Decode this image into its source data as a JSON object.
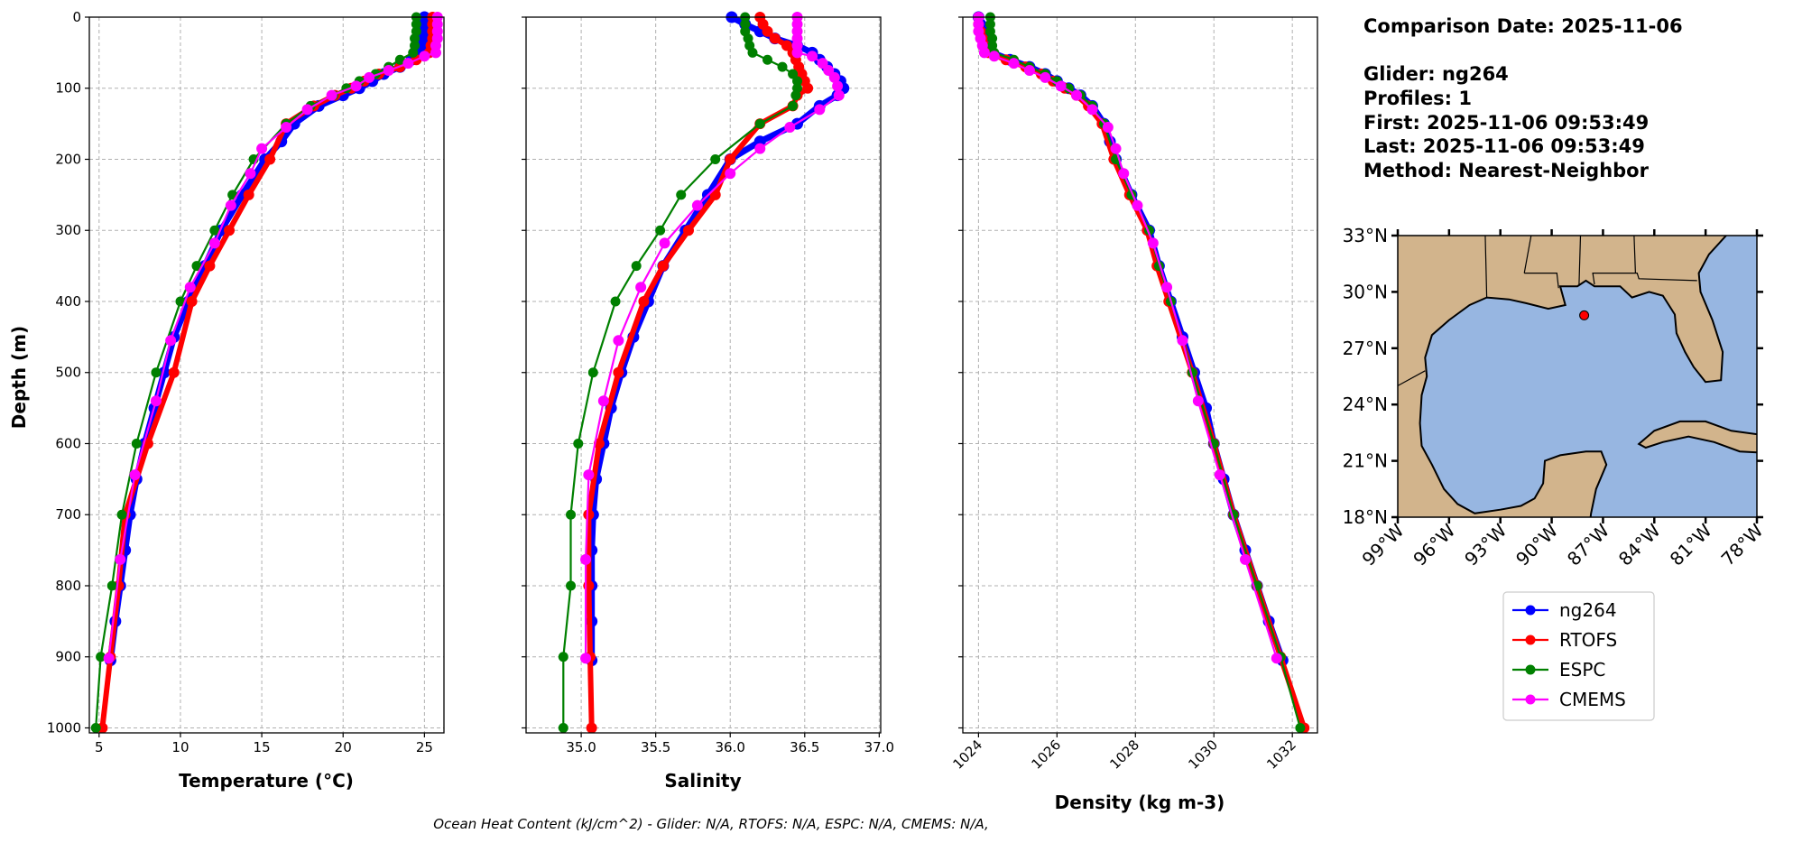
{
  "info": {
    "comparison": "Comparison Date: 2025-11-06",
    "glider": "Glider: ng264",
    "profiles": "Profiles: 1",
    "first": "First: 2025-11-06 09:53:49",
    "last": "Last: 2025-11-06 09:53:49",
    "method": "Method: Nearest-Neighbor"
  },
  "footer_note": "Ocean Heat Content (kJ/cm^2) - Glider: N/A,  RTOFS: N/A,  ESPC: N/A,  CMEMS: N/A,",
  "legend": [
    {
      "name": "ng264",
      "color": "#0000ff"
    },
    {
      "name": "RTOFS",
      "color": "#ff0000"
    },
    {
      "name": "ESPC",
      "color": "#008000"
    },
    {
      "name": "CMEMS",
      "color": "#ff00ff"
    }
  ],
  "depth_axis": {
    "label": "Depth (m)",
    "lim": [
      1007,
      0
    ],
    "ticks": [
      0,
      100,
      200,
      300,
      400,
      500,
      600,
      700,
      800,
      900,
      1000
    ]
  },
  "series_depths": {
    "ng264": [
      0,
      10,
      20,
      30,
      40,
      50,
      60,
      70,
      80,
      90,
      100,
      110,
      125,
      150,
      175,
      200,
      250,
      300,
      350,
      400,
      450,
      500,
      550,
      600,
      650,
      700,
      750,
      800,
      850,
      905
    ],
    "RTOFS": [
      0,
      10,
      20,
      30,
      40,
      50,
      60,
      70,
      80,
      90,
      100,
      110,
      125,
      150,
      200,
      250,
      300,
      350,
      400,
      500,
      600,
      700,
      800,
      900,
      1000
    ],
    "ESPC": [
      0,
      10,
      20,
      30,
      40,
      50,
      60,
      70,
      80,
      90,
      100,
      110,
      125,
      150,
      200,
      250,
      300,
      350,
      400,
      500,
      600,
      700,
      800,
      900,
      1000
    ],
    "CMEMS": [
      0,
      10,
      20,
      30,
      40,
      50,
      55,
      65,
      75,
      85,
      97,
      110,
      130,
      155,
      185,
      220,
      265,
      318,
      380,
      455,
      540,
      644,
      763,
      902
    ]
  },
  "chart_data": [
    {
      "type": "line",
      "xlabel": "Temperature (°C)",
      "ylabel": "Depth (m)",
      "xlim": [
        4.4,
        26.2
      ],
      "xticks": [
        "5",
        "10",
        "15",
        "20",
        "25"
      ],
      "xtick_values": [
        5,
        10,
        15,
        20,
        25
      ],
      "grid": true,
      "series": [
        {
          "name": "ng264",
          "values": [
            25.0,
            25.0,
            25.0,
            24.9,
            24.9,
            24.8,
            24.2,
            23.5,
            22.5,
            21.8,
            21.0,
            20.0,
            18.5,
            17.0,
            16.2,
            15.2,
            13.8,
            12.5,
            11.5,
            10.5,
            9.6,
            9.0,
            8.4,
            7.8,
            7.3,
            6.9,
            6.6,
            6.3,
            6.0,
            5.7
          ]
        },
        {
          "name": "RTOFS",
          "values": [
            25.5,
            25.5,
            25.5,
            25.5,
            25.4,
            25.3,
            24.5,
            23.5,
            22.2,
            21.3,
            20.5,
            19.5,
            18.2,
            16.5,
            15.5,
            14.2,
            13.0,
            11.8,
            10.7,
            9.6,
            8.0,
            6.6,
            6.2,
            5.7,
            5.2
          ]
        },
        {
          "name": "ESPC",
          "values": [
            24.5,
            24.5,
            24.5,
            24.4,
            24.4,
            24.3,
            23.5,
            22.8,
            22.0,
            21.0,
            20.2,
            19.4,
            18.0,
            16.5,
            14.5,
            13.2,
            12.1,
            11.0,
            10.0,
            8.5,
            7.3,
            6.4,
            5.8,
            5.1,
            4.8
          ]
        },
        {
          "name": "CMEMS",
          "values": [
            25.8,
            25.8,
            25.8,
            25.8,
            25.7,
            25.7,
            25.0,
            24.0,
            22.8,
            21.6,
            20.8,
            19.3,
            17.8,
            16.5,
            15.0,
            14.3,
            13.1,
            12.1,
            10.6,
            9.4,
            8.5,
            7.2,
            6.3,
            5.6
          ]
        }
      ]
    },
    {
      "type": "line",
      "xlabel": "Salinity",
      "xlim": [
        34.63,
        37.01
      ],
      "xticks": [
        "35.0",
        "35.5",
        "36.0",
        "36.5",
        "37.0"
      ],
      "xtick_values": [
        35.0,
        35.5,
        36.0,
        36.5,
        37.0
      ],
      "grid": true,
      "series": [
        {
          "name": "ng264",
          "values": [
            36.01,
            36.1,
            36.2,
            36.3,
            36.45,
            36.55,
            36.6,
            36.65,
            36.7,
            36.74,
            36.76,
            36.72,
            36.6,
            36.45,
            36.2,
            36.0,
            35.85,
            35.7,
            35.55,
            35.45,
            35.35,
            35.27,
            35.2,
            35.15,
            35.1,
            35.08,
            35.07,
            35.07,
            35.07,
            35.07
          ]
        },
        {
          "name": "RTOFS",
          "values": [
            36.2,
            36.22,
            36.25,
            36.3,
            36.38,
            36.42,
            36.44,
            36.46,
            36.48,
            36.5,
            36.52,
            36.45,
            36.42,
            36.2,
            36.0,
            35.9,
            35.72,
            35.55,
            35.42,
            35.25,
            35.12,
            35.05,
            35.05,
            35.06,
            35.07
          ]
        },
        {
          "name": "ESPC",
          "values": [
            36.1,
            36.1,
            36.1,
            36.12,
            36.13,
            36.15,
            36.25,
            36.35,
            36.42,
            36.45,
            36.45,
            36.44,
            36.42,
            36.2,
            35.9,
            35.67,
            35.53,
            35.37,
            35.23,
            35.08,
            34.98,
            34.93,
            34.93,
            34.88,
            34.88
          ]
        },
        {
          "name": "CMEMS",
          "values": [
            36.45,
            36.45,
            36.45,
            36.45,
            36.45,
            36.45,
            36.55,
            36.62,
            36.66,
            36.7,
            36.72,
            36.73,
            36.6,
            36.4,
            36.2,
            36.0,
            35.78,
            35.56,
            35.4,
            35.25,
            35.15,
            35.05,
            35.03,
            35.03
          ]
        }
      ]
    },
    {
      "type": "line",
      "xlabel": "Density (kg m-3)",
      "xlim": [
        1023.6,
        1032.64
      ],
      "xticks": [
        "1024",
        "1026",
        "1028",
        "1030",
        "1032"
      ],
      "xtick_values": [
        1024,
        1026,
        1028,
        1030,
        1032
      ],
      "grid": true,
      "series": [
        {
          "name": "ng264",
          "values": [
            1024.0,
            1024.05,
            1024.1,
            1024.15,
            1024.2,
            1024.35,
            1024.8,
            1025.3,
            1025.7,
            1026.0,
            1026.3,
            1026.6,
            1026.9,
            1027.2,
            1027.35,
            1027.5,
            1027.9,
            1028.35,
            1028.6,
            1028.9,
            1029.2,
            1029.5,
            1029.8,
            1030.0,
            1030.25,
            1030.5,
            1030.8,
            1031.1,
            1031.4,
            1031.75
          ]
        },
        {
          "name": "RTOFS",
          "values": [
            1024.0,
            1024.0,
            1024.05,
            1024.1,
            1024.15,
            1024.25,
            1024.7,
            1025.2,
            1025.6,
            1025.9,
            1026.2,
            1026.5,
            1026.8,
            1027.15,
            1027.45,
            1027.85,
            1028.3,
            1028.55,
            1028.85,
            1029.45,
            1030.0,
            1030.5,
            1031.1,
            1031.7,
            1032.3
          ]
        },
        {
          "name": "ESPC",
          "values": [
            1024.3,
            1024.3,
            1024.3,
            1024.35,
            1024.35,
            1024.4,
            1024.9,
            1025.3,
            1025.7,
            1026.0,
            1026.3,
            1026.6,
            1026.9,
            1027.2,
            1027.5,
            1027.9,
            1028.35,
            1028.6,
            1028.9,
            1029.45,
            1030.0,
            1030.5,
            1031.1,
            1031.7,
            1032.2
          ]
        },
        {
          "name": "CMEMS",
          "values": [
            1024.0,
            1024.0,
            1024.0,
            1024.05,
            1024.1,
            1024.15,
            1024.4,
            1024.9,
            1025.3,
            1025.7,
            1026.1,
            1026.5,
            1026.9,
            1027.3,
            1027.5,
            1027.7,
            1028.05,
            1028.45,
            1028.8,
            1029.2,
            1029.6,
            1030.15,
            1030.8,
            1031.6
          ]
        }
      ]
    }
  ],
  "map": {
    "lon_range": [
      -99,
      -78
    ],
    "lat_range": [
      18,
      33
    ],
    "lat_ticks": [
      "33°N",
      "30°N",
      "27°N",
      "24°N",
      "21°N",
      "18°N"
    ],
    "lat_tick_values": [
      33,
      30,
      27,
      24,
      21,
      18
    ],
    "lon_ticks": [
      "99°W",
      "96°W",
      "93°W",
      "90°W",
      "87°W",
      "84°W",
      "81°W",
      "78°W"
    ],
    "lon_tick_values": [
      -99,
      -96,
      -93,
      -90,
      -87,
      -84,
      -81,
      -78
    ],
    "land_color": "#d2b48c",
    "water_color": "#97b6e1",
    "glider_position": {
      "lon": -88.1,
      "lat": 28.75,
      "color": "#ff0000"
    }
  }
}
